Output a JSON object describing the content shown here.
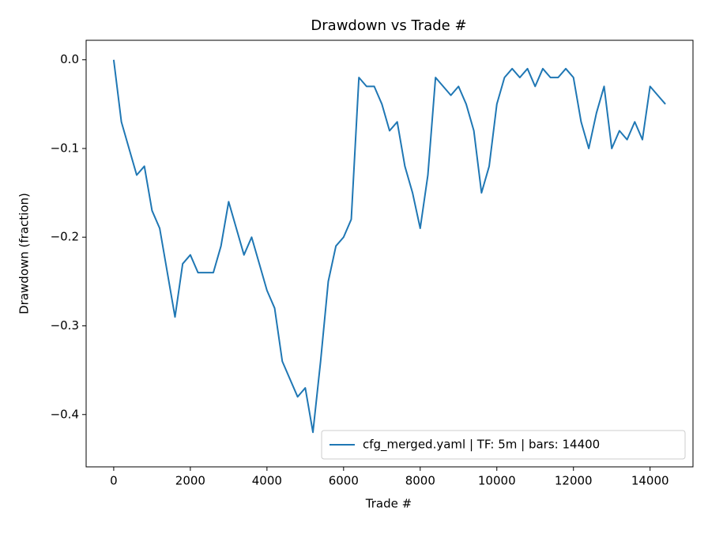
{
  "chart_data": {
    "type": "line",
    "title": "Drawdown vs Trade #",
    "xlabel": "Trade #",
    "ylabel": "Drawdown (fraction)",
    "x": [
      0,
      200,
      400,
      600,
      800,
      1000,
      1200,
      1400,
      1600,
      1800,
      2000,
      2200,
      2400,
      2600,
      2800,
      3000,
      3200,
      3400,
      3600,
      3800,
      4000,
      4200,
      4400,
      4600,
      4800,
      5000,
      5200,
      5400,
      5600,
      5800,
      6000,
      6200,
      6400,
      6600,
      6800,
      7000,
      7200,
      7400,
      7600,
      7800,
      8000,
      8200,
      8400,
      8600,
      8800,
      9000,
      9200,
      9400,
      9600,
      9800,
      10000,
      10200,
      10400,
      10600,
      10800,
      11000,
      11200,
      11400,
      11600,
      11800,
      12000,
      12200,
      12400,
      12600,
      12800,
      13000,
      13200,
      13400,
      13600,
      13800,
      14000,
      14200,
      14400
    ],
    "series": [
      {
        "name": "cfg_merged.yaml | TF: 5m | bars: 14400",
        "color": "#1f77b4",
        "values": [
          0.0,
          -0.07,
          -0.1,
          -0.13,
          -0.12,
          -0.17,
          -0.19,
          -0.24,
          -0.29,
          -0.23,
          -0.22,
          -0.24,
          -0.24,
          -0.24,
          -0.21,
          -0.16,
          -0.19,
          -0.22,
          -0.2,
          -0.23,
          -0.26,
          -0.28,
          -0.34,
          -0.36,
          -0.38,
          -0.37,
          -0.42,
          -0.34,
          -0.25,
          -0.21,
          -0.2,
          -0.18,
          -0.02,
          -0.03,
          -0.03,
          -0.05,
          -0.08,
          -0.07,
          -0.12,
          -0.15,
          -0.19,
          -0.13,
          -0.02,
          -0.03,
          -0.04,
          -0.03,
          -0.05,
          -0.08,
          -0.15,
          -0.12,
          -0.05,
          -0.02,
          -0.01,
          -0.02,
          -0.01,
          -0.03,
          -0.01,
          -0.02,
          -0.02,
          -0.01,
          -0.02,
          -0.07,
          -0.1,
          -0.06,
          -0.03,
          -0.1,
          -0.08,
          -0.09,
          -0.07,
          -0.09,
          -0.03,
          -0.04,
          -0.05
        ]
      }
    ],
    "xlim": [
      -720,
      15120
    ],
    "xticks": [
      0,
      2000,
      4000,
      6000,
      8000,
      10000,
      12000,
      14000
    ],
    "ylim": [
      -0.459,
      0.022
    ],
    "yticks": [
      {
        "value": 0.0,
        "label": "0.0"
      },
      {
        "value": -0.1,
        "label": "−0.1"
      },
      {
        "value": -0.2,
        "label": "−0.2"
      },
      {
        "value": -0.3,
        "label": "−0.3"
      },
      {
        "value": -0.4,
        "label": "−0.4"
      }
    ],
    "grid": false,
    "legend": "lower right"
  }
}
